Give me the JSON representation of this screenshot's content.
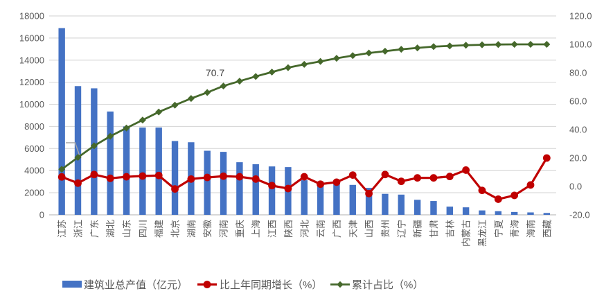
{
  "chart_data": {
    "type": "bar",
    "title": "",
    "categories": [
      "江苏",
      "浙江",
      "广东",
      "湖北",
      "山东",
      "四川",
      "福建",
      "北京",
      "湖南",
      "安徽",
      "河南",
      "重庆",
      "上海",
      "江西",
      "陕西",
      "河北",
      "云南",
      "广西",
      "天津",
      "山西",
      "贵州",
      "辽宁",
      "新疆",
      "甘肃",
      "吉林",
      "内蒙古",
      "黑龙江",
      "宁夏",
      "青海",
      "海南",
      "西藏"
    ],
    "series": [
      {
        "name": "建筑业总产值（亿元）",
        "type": "bar",
        "axis": "left",
        "color": "#4472C4",
        "values": [
          16900,
          11650,
          11450,
          9350,
          8000,
          7900,
          7900,
          6680,
          6570,
          5800,
          5700,
          4760,
          4580,
          4380,
          4320,
          3130,
          3020,
          2990,
          2710,
          2440,
          1900,
          1830,
          1360,
          1250,
          740,
          680,
          400,
          330,
          260,
          220,
          170
        ]
      },
      {
        "name": "比上年同期增长（%）",
        "type": "line",
        "marker": "circle",
        "axis": "right",
        "color": "#C00000",
        "values": [
          6.7,
          2.3,
          8.4,
          5.7,
          6.8,
          7.3,
          7.7,
          -1.8,
          5.2,
          6.3,
          7.2,
          6.8,
          5.2,
          0.6,
          -1.5,
          6.8,
          1.6,
          3.0,
          8.0,
          -5.0,
          8.4,
          3.6,
          6.0,
          6.0,
          7.0,
          11.5,
          -2.8,
          -9.0,
          -6.3,
          1.0,
          20.0
        ]
      },
      {
        "name": "累计占比（%）",
        "type": "line",
        "marker": "diamond",
        "axis": "right",
        "color": "#45682B",
        "values": [
          12.1,
          20.4,
          28.6,
          35.3,
          41.1,
          46.7,
          52.4,
          57.2,
          61.9,
          66.1,
          70.7,
          74.1,
          77.4,
          80.5,
          83.6,
          85.9,
          88.0,
          90.2,
          92.1,
          93.9,
          95.2,
          96.5,
          97.5,
          98.4,
          98.9,
          99.4,
          99.7,
          99.9,
          100.0,
          100.0,
          100.0
        ]
      }
    ],
    "left_axis": {
      "min": 0,
      "max": 18000,
      "step": 2000,
      "ticks": [
        "0",
        "2000",
        "4000",
        "6000",
        "8000",
        "10000",
        "12000",
        "14000",
        "16000",
        "18000"
      ]
    },
    "right_axis": {
      "min": -20,
      "max": 120,
      "step": 20,
      "ticks": [
        "-20.0",
        "0.0",
        "20.0",
        "40.0",
        "60.0",
        "80.0",
        "100.0",
        "120.0"
      ]
    },
    "annotation": {
      "text": "70.7",
      "series": "累计占比（%）",
      "category": "河南",
      "category_index": 10
    },
    "grid": true,
    "legend_position": "bottom",
    "colors": {
      "bar": "#4472C4",
      "growth_line": "#C00000",
      "cumulative_line": "#45682B",
      "gridline": "#D9D9D9",
      "axis_line": "#BFBFBF",
      "tick_text": "#595959",
      "annotation_text": "#404040",
      "callout": "#A6A6A6"
    }
  }
}
